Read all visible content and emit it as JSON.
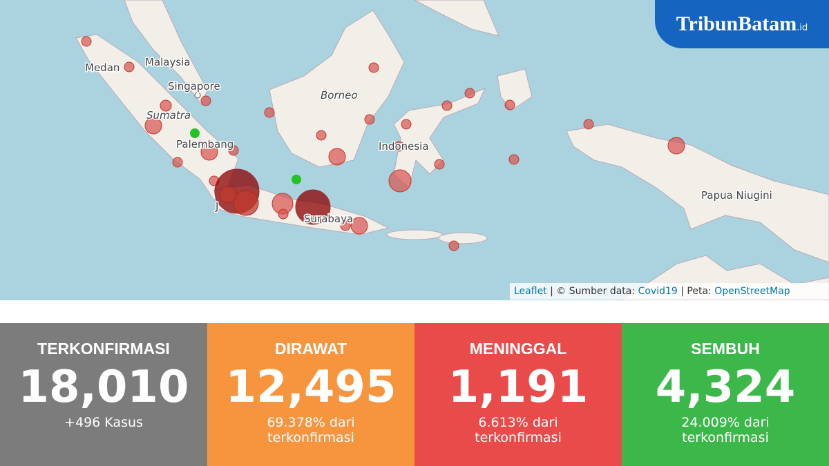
{
  "logo": {
    "name": "TribunBatam",
    "suffix": ".id"
  },
  "map": {
    "labels": [
      "Medan",
      "Malaysia",
      "Singapore",
      "Sumatra",
      "Palembang",
      "Borneo",
      "Indonesia",
      "Papua Niugini",
      "Surabaya",
      "J"
    ],
    "attribution": {
      "leaflet": "Leaflet",
      "source_prefix": "| © Sumber data:",
      "source": "Covid19",
      "map_prefix": "| Peta:",
      "map_source": "OpenStreetMap"
    }
  },
  "cards": [
    {
      "title": "TERKONFIRMASI",
      "value": "18,010",
      "note": "+496 Kasus"
    },
    {
      "title": "DIRAWAT",
      "value": "12,495",
      "note": "69.378% dari terkonfirmasi"
    },
    {
      "title": "MENINGGAL",
      "value": "1,191",
      "note": "6.613% dari terkonfirmasi"
    },
    {
      "title": "SEMBUH",
      "value": "4,324",
      "note": "24.009% dari terkonfirmasi"
    }
  ]
}
